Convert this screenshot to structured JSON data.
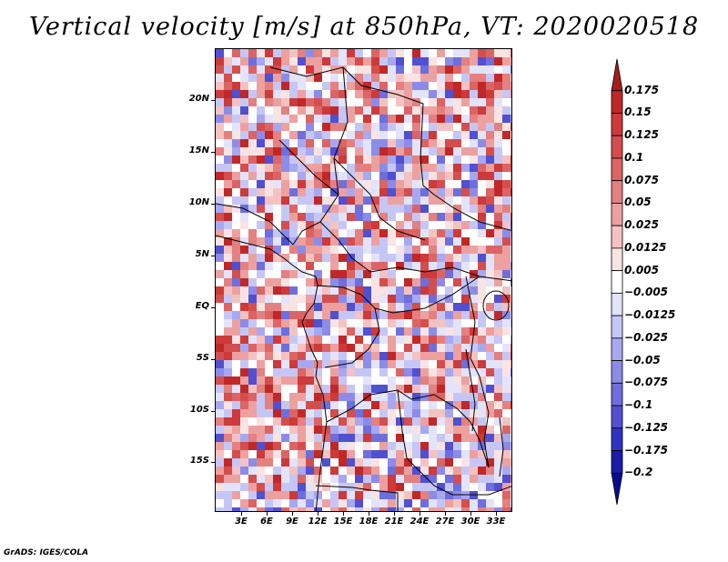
{
  "title": "Vertical velocity [m/s] at 850hPa, VT: 2020020518",
  "footer": "GrADS: IGES/COLA",
  "lat_labels": [
    "20N",
    "15N",
    "10N",
    "5N",
    "EQ",
    "5S",
    "10S",
    "15S"
  ],
  "lon_labels": [
    "3E",
    "6E",
    "9E",
    "12E",
    "15E",
    "18E",
    "21E",
    "24E",
    "27E",
    "30E",
    "33E"
  ],
  "colorbar": {
    "labels": [
      "0.175",
      "0.15",
      "0.125",
      "0.1",
      "0.075",
      "0.05",
      "0.025",
      "0.0125",
      "0.005",
      "−0.005",
      "−0.0125",
      "−0.025",
      "−0.05",
      "−0.075",
      "−0.1",
      "−0.125",
      "−0.175",
      "−0.2"
    ],
    "colors": [
      "#a51d1d",
      "#c02828",
      "#cc3a3a",
      "#d44e4e",
      "#dc6464",
      "#e48080",
      "#eda0a0",
      "#f4c2c2",
      "#fae3e3",
      "#ffffff",
      "#e3e3fb",
      "#c6c6f6",
      "#a8a8f0",
      "#8c8ce8",
      "#6e6edd",
      "#5050d0",
      "#3232c0",
      "#1c1caa",
      "#0a0a90"
    ]
  }
}
